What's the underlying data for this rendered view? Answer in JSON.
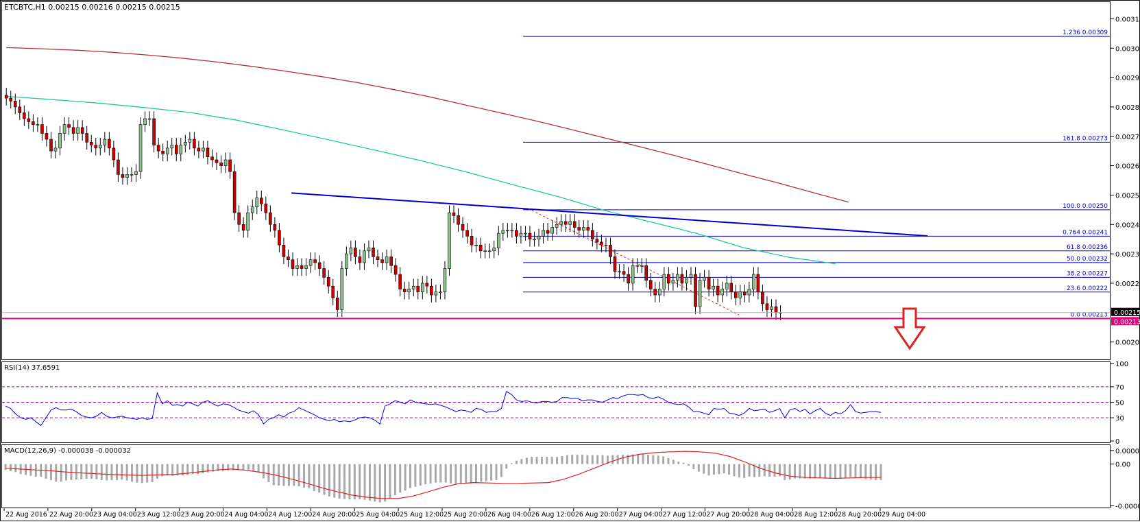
{
  "chart_data": [
    {
      "panel": "price",
      "type": "candlestick",
      "symbol_line": "ETCBTC,H1  0.00215 0.00216 0.00215 0.00215",
      "ylim": [
        0.002,
        0.0032
      ],
      "yticks": [
        "0.00315",
        "0.00305",
        "0.00295",
        "0.00285",
        "0.00275",
        "0.00265",
        "0.00255",
        "0.00245",
        "0.00235",
        "0.00225",
        "0.00215",
        "0.00205"
      ],
      "ytick_values": [
        0.00315,
        0.00305,
        0.00295,
        0.00285,
        0.00275,
        0.00265,
        0.00255,
        0.00245,
        0.00235,
        0.00225,
        0.00215,
        0.00205
      ],
      "current_price": 0.00215,
      "current_price_label": "0.00215",
      "support_level": 0.00213,
      "support_label": "0.00213",
      "colors": {
        "bull": "#90c090",
        "bear": "#cc0000",
        "wick": "#000000",
        "ma_slow": "#b83030",
        "ma_fast": "#20c8a0",
        "trendline": "#0000cc",
        "fib": "#0000cc",
        "support": "#e0007a",
        "arrow": "#dd2222"
      },
      "candles_close": [
        0.00288,
        0.00287,
        0.00285,
        0.00283,
        0.00281,
        0.0028,
        0.00279,
        0.00279,
        0.00276,
        0.00274,
        0.0027,
        0.00271,
        0.00276,
        0.00279,
        0.00278,
        0.00276,
        0.00278,
        0.00276,
        0.00273,
        0.00272,
        0.00271,
        0.00272,
        0.00274,
        0.00271,
        0.00267,
        0.00262,
        0.00261,
        0.00262,
        0.00262,
        0.00263,
        0.00279,
        0.00281,
        0.00281,
        0.00272,
        0.0027,
        0.00269,
        0.00271,
        0.00272,
        0.00269,
        0.00272,
        0.00273,
        0.00274,
        0.00271,
        0.0027,
        0.00271,
        0.00268,
        0.00267,
        0.00266,
        0.00265,
        0.00267,
        0.00263,
        0.00249,
        0.00245,
        0.00243,
        0.00249,
        0.00251,
        0.00254,
        0.00252,
        0.00249,
        0.00245,
        0.00243,
        0.00238,
        0.00234,
        0.00233,
        0.0023,
        0.00231,
        0.0023,
        0.00231,
        0.00233,
        0.00232,
        0.0023,
        0.00227,
        0.00224,
        0.0022,
        0.00216,
        0.0023,
        0.00235,
        0.00237,
        0.00234,
        0.00232,
        0.00236,
        0.00237,
        0.00234,
        0.00233,
        0.00232,
        0.00234,
        0.00231,
        0.00228,
        0.00223,
        0.00222,
        0.00223,
        0.00224,
        0.00222,
        0.00225,
        0.00224,
        0.00221,
        0.00222,
        0.00222,
        0.0023,
        0.00249,
        0.00248,
        0.00245,
        0.00243,
        0.00241,
        0.00238,
        0.00238,
        0.00236,
        0.00236,
        0.00236,
        0.00237,
        0.00242,
        0.00243,
        0.00243,
        0.00243,
        0.00241,
        0.00242,
        0.00242,
        0.0024,
        0.0024,
        0.00241,
        0.00243,
        0.00242,
        0.00244,
        0.00245,
        0.00246,
        0.00245,
        0.00246,
        0.00244,
        0.00243,
        0.00244,
        0.00243,
        0.0024,
        0.00239,
        0.00238,
        0.00238,
        0.00234,
        0.00229,
        0.00229,
        0.00228,
        0.00225,
        0.00231,
        0.00231,
        0.00231,
        0.00226,
        0.00223,
        0.00221,
        0.00223,
        0.00228,
        0.00225,
        0.00226,
        0.00228,
        0.00225,
        0.00227,
        0.00228,
        0.00217,
        0.00226,
        0.00227,
        0.00223,
        0.00224,
        0.00221,
        0.00223,
        0.00225,
        0.00222,
        0.0022,
        0.00222,
        0.00221,
        0.00223,
        0.00228,
        0.00222,
        0.00218,
        0.00216,
        0.00217,
        0.00215,
        0.00215
      ],
      "ma_slow": [
        0.003052,
        0.003048,
        0.003043,
        0.003036,
        0.003027,
        0.003016,
        0.003003,
        0.002988,
        0.002971,
        0.002953,
        0.002933,
        0.00291,
        0.002886,
        0.002859,
        0.002832,
        0.002805,
        0.002776,
        0.002746,
        0.002716,
        0.002686,
        0.002654,
        0.002622,
        0.002591,
        0.002558,
        0.002526
      ],
      "ma_fast": [
        0.002886,
        0.002875,
        0.002863,
        0.002848,
        0.002831,
        0.002805,
        0.002772,
        0.002738,
        0.002703,
        0.002667,
        0.002628,
        0.002585,
        0.002544,
        0.002497,
        0.002458,
        0.002419,
        0.002371,
        0.002338,
        0.002316
      ],
      "trendline": {
        "from_bar": 65,
        "from_value": 0.002557,
        "to_bar": 210,
        "to_value": 0.002411
      },
      "dashed_trend": {
        "from_bar": 119,
        "from_value": 0.002504,
        "to_bar": 167,
        "to_value": 0.002142
      },
      "fib_levels": [
        {
          "label": "1.236  0.00309",
          "value": 0.00309
        },
        {
          "label": "161.8  0.00273",
          "value": 0.00273
        },
        {
          "label": "100.0  0.00250",
          "value": 0.0025
        },
        {
          "label": "0.764  0.00241",
          "value": 0.00241
        },
        {
          "label": "61.8  0.00236",
          "value": 0.00236
        },
        {
          "label": "50.0  0.00232",
          "value": 0.00232
        },
        {
          "label": "38.2  0.00227",
          "value": 0.00227
        },
        {
          "label": "23.6  0.00222",
          "value": 0.00222
        },
        {
          "label": "0.0  0.00213",
          "value": 0.00213
        }
      ]
    },
    {
      "panel": "rsi",
      "type": "line",
      "title": "RSI(14) 37.6591",
      "ylim": [
        0,
        100
      ],
      "yticks": [
        "100",
        "70",
        "50",
        "30",
        "0"
      ],
      "ytick_values": [
        100,
        70,
        50,
        30,
        0
      ],
      "levels": [
        70,
        50,
        30
      ],
      "values": [
        45,
        42,
        35,
        30,
        28,
        30,
        25,
        20,
        30,
        40,
        43,
        40,
        40,
        41,
        38,
        33,
        31,
        30,
        32,
        37,
        32,
        30,
        31,
        32,
        30,
        29,
        28,
        30,
        28,
        29,
        62,
        48,
        52,
        46,
        47,
        45,
        50,
        48,
        45,
        50,
        52,
        48,
        45,
        48,
        47,
        44,
        40,
        38,
        36,
        39,
        34,
        22,
        28,
        30,
        34,
        31,
        36,
        38,
        43,
        40,
        37,
        34,
        30,
        28,
        26,
        28,
        25,
        26,
        25,
        27,
        30,
        31,
        30,
        27,
        22,
        45,
        48,
        52,
        50,
        48,
        53,
        50,
        49,
        48,
        47,
        48,
        46,
        44,
        41,
        38,
        40,
        39,
        37,
        42,
        41,
        37,
        38,
        38,
        42,
        64,
        60,
        53,
        51,
        52,
        50,
        49,
        51,
        51,
        50,
        51,
        56,
        56,
        55,
        55,
        52,
        53,
        53,
        51,
        50,
        53,
        56,
        55,
        58,
        60,
        60,
        59,
        60,
        56,
        55,
        57,
        54,
        50,
        48,
        47,
        48,
        44,
        38,
        38,
        36,
        34,
        42,
        41,
        42,
        36,
        35,
        33,
        36,
        42,
        39,
        40,
        41,
        37,
        39,
        42,
        30,
        40,
        42,
        38,
        41,
        35,
        39,
        42,
        36,
        33,
        37,
        35,
        39,
        47,
        38,
        36,
        37,
        38,
        38,
        37
      ],
      "current": 37.6591
    },
    {
      "panel": "macd",
      "type": "histogram+line",
      "title": "MACD(12,26,9) -0.000038 -0.000032",
      "ylim": [
        -0.0001,
        4e-05
      ],
      "yticks": [
        "0.000032",
        "0.00",
        "-0.000099"
      ],
      "ytick_values": [
        3.2e-05,
        0.0,
        -9.9e-05
      ],
      "histogram": [
        -1.4e-05,
        -1.7e-05,
        -1.9e-05,
        -2.4e-05,
        -2.6e-05,
        -2.8e-05,
        -3e-05,
        -3e-05,
        -3.5e-05,
        -3.8e-05,
        -4.2e-05,
        -4.2e-05,
        -3.9e-05,
        -3.8e-05,
        -3.7e-05,
        -3.6e-05,
        -3.5e-05,
        -3.5e-05,
        -3.6e-05,
        -3.8e-05,
        -3.9e-05,
        -3.8e-05,
        -3.8e-05,
        -3.7e-05,
        -3.9e-05,
        -4.2e-05,
        -4.4e-05,
        -4.5e-05,
        -4.4e-05,
        -4.3e-05,
        -3.5e-05,
        -2.9e-05,
        -2.7e-05,
        -2.8e-05,
        -2.7e-05,
        -2.7e-05,
        -2.6e-05,
        -2.4e-05,
        -2.4e-05,
        -2.2e-05,
        -2e-05,
        -1.8e-05,
        -1.7e-05,
        -1.6e-05,
        -1.5e-05,
        -1.5e-05,
        -1.4e-05,
        -1.4e-05,
        -1.5e-05,
        -1.7e-05,
        -2e-05,
        -3.4e-05,
        -4.3e-05,
        -5e-05,
        -5.1e-05,
        -5.2e-05,
        -5.2e-05,
        -5.2e-05,
        -5.3e-05,
        -5.6e-05,
        -5.8e-05,
        -6.4e-05,
        -6.8e-05,
        -7.3e-05,
        -7.7e-05,
        -8e-05,
        -8.2e-05,
        -8.3e-05,
        -8.4e-05,
        -8.4e-05,
        -8.4e-05,
        -8.5e-05,
        -8.7e-05,
        -8.9e-05,
        -9.1e-05,
        -8.9e-05,
        -8.2e-05,
        -7.4e-05,
        -6.8e-05,
        -6.3e-05,
        -5.7e-05,
        -5.4e-05,
        -5.1e-05,
        -4.8e-05,
        -4.6e-05,
        -4.4e-05,
        -4.4e-05,
        -4.4e-05,
        -4.6e-05,
        -4.7e-05,
        -4.7e-05,
        -4.6e-05,
        -4.6e-05,
        -4.5e-05,
        -4.2e-05,
        -4.1e-05,
        -3.9e-05,
        -3.8e-05,
        -3.1e-05,
        -1.1e-05,
        2e-06,
        8e-06,
        1.2e-05,
        1.5e-05,
        1.7e-05,
        1.7e-05,
        1.7e-05,
        1.7e-05,
        1.7e-05,
        1.7e-05,
        1.9e-05,
        2.1e-05,
        2.2e-05,
        2.2e-05,
        2.2e-05,
        2.1e-05,
        2.1e-05,
        2.1e-05,
        2.1e-05,
        2e-05,
        2.1e-05,
        2.1e-05,
        2.2e-05,
        2.2e-05,
        2.3e-05,
        2.3e-05,
        2.3e-05,
        2.2e-05,
        2.1e-05,
        2e-05,
        1.8e-05,
        1.4e-05,
        1e-05,
        6e-06,
        3e-06,
        -4e-06,
        -1.2e-05,
        -1.8e-05,
        -2.3e-05,
        -2.7e-05,
        -2.5e-05,
        -2.4e-05,
        -2.2e-05,
        -2.5e-05,
        -2.9e-05,
        -3.2e-05,
        -3.3e-05,
        -3e-05,
        -3.1e-05,
        -3e-05,
        -2.9e-05,
        -3e-05,
        -3e-05,
        -2.9e-05,
        -3.8e-05,
        -3.7e-05,
        -3.4e-05,
        -3.4e-05,
        -3.4e-05,
        -3.5e-05,
        -3.4e-05,
        -3.3e-05,
        -3.4e-05,
        -3.5e-05,
        -3.5e-05,
        -3.5e-05,
        -3.4e-05,
        -3.1e-05,
        -3.2e-05,
        -3.4e-05,
        -3.6e-05,
        -3.7e-05,
        -3.8e-05,
        -3.8e-05
      ],
      "signal": [
        -1e-05,
        -1.2e-05,
        -1.4e-05,
        -1.6e-05,
        -1.9e-05,
        -2.1e-05,
        -2.3e-05,
        -2.5e-05,
        -2.6e-05,
        -2.7e-05,
        -2.6e-05,
        -2.5e-05,
        -2.2e-05,
        -1.8e-05,
        -1.4e-05,
        -1.2e-05,
        -1.5e-05,
        -2e-05,
        -2.7e-05,
        -3.6e-05,
        -4.6e-05,
        -5.7e-05,
        -6.6e-05,
        -7.4e-05,
        -7.9e-05,
        -8.2e-05,
        -8.2e-05,
        -7.6e-05,
        -6.6e-05,
        -5.5e-05,
        -4.7e-05,
        -4.4e-05,
        -4.5e-05,
        -4.6e-05,
        -4.6e-05,
        -4.5e-05,
        -4.4e-05,
        -3.6e-05,
        -2.4e-05,
        -1e-05,
        4e-06,
        1.6e-05,
        2.3e-05,
        2.7e-05,
        2.9e-05,
        3e-05,
        2.9e-05,
        2.6e-05,
        1.8e-05,
        5e-06,
        -1e-05,
        -2.1e-05,
        -2.9e-05,
        -3.2e-05,
        -3.3e-05,
        -3.4e-05,
        -3.3e-05,
        -3.2e-05,
        -3.2e-05
      ],
      "colors": {
        "histogram": "#a8a8a8",
        "signal": "#dd2222"
      }
    }
  ],
  "x_axis": {
    "labels": [
      "22 Aug 2016",
      "22 Aug 20:00",
      "23 Aug 04:00",
      "23 Aug 12:00",
      "23 Aug 20:00",
      "24 Aug 04:00",
      "24 Aug 12:00",
      "24 Aug 20:00",
      "25 Aug 04:00",
      "25 Aug 12:00",
      "25 Aug 20:00",
      "26 Aug 04:00",
      "26 Aug 12:00",
      "26 Aug 20:00",
      "27 Aug 04:00",
      "27 Aug 12:00",
      "27 Aug 20:00",
      "28 Aug 04:00",
      "28 Aug 12:00",
      "28 Aug 20:00",
      "29 Aug 04:00"
    ]
  }
}
